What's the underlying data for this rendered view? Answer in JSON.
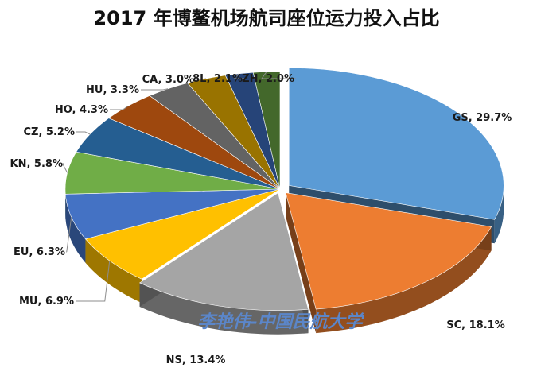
{
  "chart_data": {
    "type": "pie",
    "title": "2017 年博鳌机场航司座位运力投入占比",
    "slices": [
      {
        "name": "GS",
        "value": 29.7,
        "label": "GS, 29.7%",
        "color": "#5b9bd5"
      },
      {
        "name": "SC",
        "value": 18.1,
        "label": "SC, 18.1%",
        "color": "#ed7d31"
      },
      {
        "name": "NS",
        "value": 13.4,
        "label": "NS, 13.4%",
        "color": "#a5a5a5"
      },
      {
        "name": "MU",
        "value": 6.9,
        "label": "MU, 6.9%",
        "color": "#ffc000"
      },
      {
        "name": "EU",
        "value": 6.3,
        "label": "EU, 6.3%",
        "color": "#4472c4"
      },
      {
        "name": "KN",
        "value": 5.8,
        "label": "KN, 5.8%",
        "color": "#70ad47"
      },
      {
        "name": "CZ",
        "value": 5.2,
        "label": "CZ, 5.2%",
        "color": "#255e91"
      },
      {
        "name": "HO",
        "value": 4.3,
        "label": "HO, 4.3%",
        "color": "#9e480e"
      },
      {
        "name": "HU",
        "value": 3.3,
        "label": "HU, 3.3%",
        "color": "#636363"
      },
      {
        "name": "CA",
        "value": 3.0,
        "label": "CA, 3.0%",
        "color": "#997300"
      },
      {
        "name": "8L",
        "value": 2.1,
        "label": "8L, 2.1%",
        "color": "#264478"
      },
      {
        "name": "ZH",
        "value": 2.0,
        "label": "ZH, 2.0%",
        "color": "#43682b"
      }
    ],
    "exploded": [
      "GS",
      "SC",
      "NS"
    ],
    "style": "3d-pie",
    "legend": "none"
  },
  "watermark": "李艳伟-中国民航大学"
}
